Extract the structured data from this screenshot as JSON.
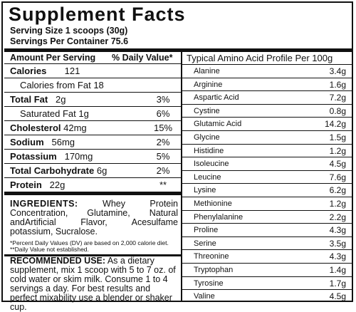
{
  "title": "Supplement Facts",
  "serving_size": "Serving Size 1 scoops (30g)",
  "servings_per_container": "Servings Per Container 75.6",
  "nutrition": {
    "header_amount": "Amount Per Serving",
    "header_dv": "% Daily Value*",
    "rows": [
      {
        "name": "Calories",
        "amount": "121",
        "pct": ""
      },
      {
        "name": "Calories from Fat",
        "amount": "18",
        "pct": ""
      },
      {
        "name": "Total Fat",
        "amount": "2g",
        "pct": "3%"
      },
      {
        "name": "Saturated Fat",
        "amount": "1g",
        "pct": "6%"
      },
      {
        "name": "Cholesterol",
        "amount": "42mg",
        "pct": "15%"
      },
      {
        "name": "Sodium",
        "amount": "56mg",
        "pct": "2%"
      },
      {
        "name": "Potassium",
        "amount": "170mg",
        "pct": "5%"
      },
      {
        "name": "Total Carbohydrate",
        "amount": "6g",
        "pct": "2%"
      },
      {
        "name": "Protein",
        "amount": "22g",
        "pct": "**"
      }
    ]
  },
  "ingredients": {
    "label": "INGREDIENTS:",
    "text": "Whey Protein Concentration, Glutamine, Natural andArtificial Flavor, Acesulfame potassium, Sucralose."
  },
  "footnotes": {
    "dv": "*Percent Daily Values (DV) are based on 2,000 calorie diet.",
    "na": "**Daily Value not established."
  },
  "recommended": {
    "label": "RECOMMENDED USE:",
    "text": "As a dietary supplement, mix 1 scoop with 5 to 7 oz. of cold water or skim milk. Consume 1 to 4 servings a day. For best results and perfect mixability use a blender or shaker cup."
  },
  "amino": {
    "header": "Typical  Amino Acid Profile  Per  100g",
    "rows": [
      {
        "name": "Alanine",
        "value": "3.4g"
      },
      {
        "name": "Arginine",
        "value": "1.6g"
      },
      {
        "name": "Aspartic Acid",
        "value": "7.2g"
      },
      {
        "name": "Cystine",
        "value": "0.8g"
      },
      {
        "name": "Glutamic Acid",
        "value": "14.2g"
      },
      {
        "name": "Glycine",
        "value": "1.5g"
      },
      {
        "name": "Histidine",
        "value": "1.2g"
      },
      {
        "name": "Isoleucine",
        "value": "4.5g"
      },
      {
        "name": "Leucine",
        "value": "7.6g"
      },
      {
        "name": "Lysine",
        "value": "6.2g"
      },
      {
        "name": "Methionine",
        "value": "1.2g"
      },
      {
        "name": "Phenylalanine",
        "value": "2.2g"
      },
      {
        "name": "Proline",
        "value": "4.3g"
      },
      {
        "name": "Serine",
        "value": "3.5g"
      },
      {
        "name": "Threonine",
        "value": "4.3g"
      },
      {
        "name": "Tryptophan",
        "value": "1.4g"
      },
      {
        "name": "Tyrosine",
        "value": "1.7g"
      },
      {
        "name": "Valine",
        "value": "4.5g"
      }
    ]
  }
}
